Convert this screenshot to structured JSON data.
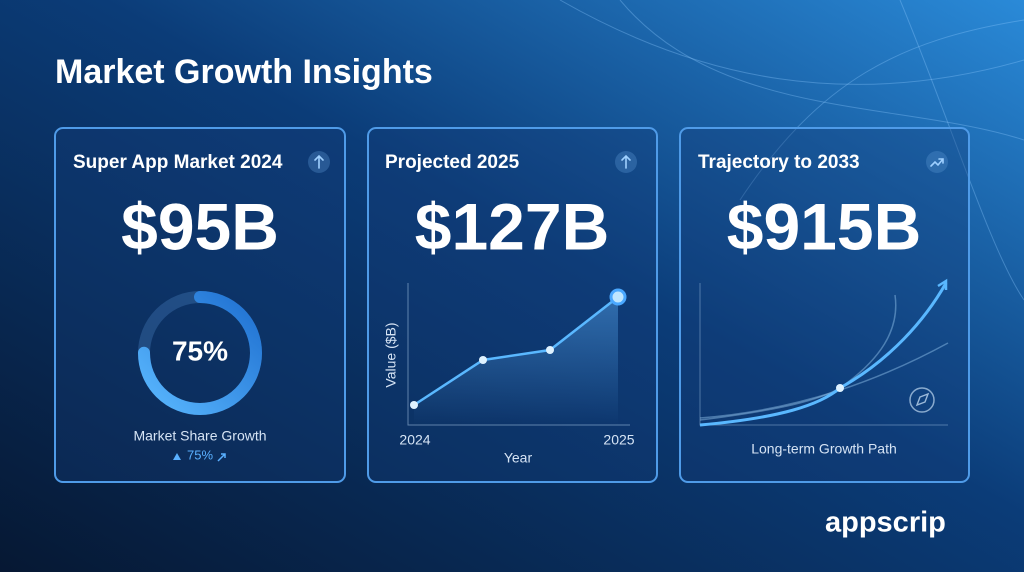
{
  "header": {
    "title": "Market Growth Insights"
  },
  "cards": [
    {
      "title": "Super App Market 2024",
      "value": "$95B",
      "donut": {
        "value": 75,
        "label": "75%"
      },
      "caption": "Market Share Growth",
      "change": "75%"
    },
    {
      "title": "Projected 2025",
      "value": "$127B",
      "chart": {
        "y_label": "Value ($B)",
        "x_label": "Year",
        "x_start": "2024",
        "x_end": "2025"
      }
    },
    {
      "title": "Trajectory to 2033",
      "value": "$915B",
      "caption": "Long-term Growth Path"
    }
  ],
  "brand": "appscrip"
}
